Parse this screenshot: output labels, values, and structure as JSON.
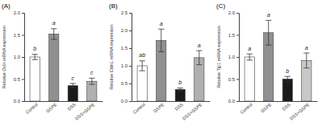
{
  "chart_data": [
    {
      "type": "bar",
      "title": "(A)",
      "ylabel": "Relative Ocln mRNA expression",
      "categories": [
        "Control",
        "GSPE",
        "DSS",
        "DSS+GSPE"
      ],
      "values": [
        1.0,
        1.52,
        0.35,
        0.45
      ],
      "errors": [
        0.06,
        0.12,
        0.05,
        0.07
      ],
      "letters": [
        "b",
        "a",
        "c",
        "c"
      ],
      "colors": [
        "#ffffff",
        "#909090",
        "#1a1a1a",
        "#b0b0b0"
      ],
      "ylim": [
        0,
        2.0
      ],
      "yticks": [
        {
          "value": 0.0,
          "label": "0.0"
        },
        0.5,
        {
          "value": 1.0,
          "label": "1.0"
        },
        1.5,
        {
          "value": 2.0,
          "label": "2.0"
        }
      ]
    },
    {
      "type": "bar",
      "title": "(B)",
      "ylabel": "Relative Cldn1 mRNA expression",
      "categories": [
        "Control",
        "GSPE",
        "DSS",
        "DSS+GSPE"
      ],
      "values": [
        1.0,
        1.72,
        0.33,
        1.23
      ],
      "errors": [
        0.14,
        0.32,
        0.04,
        0.2
      ],
      "letters": [
        "ab",
        "a",
        "b",
        "a"
      ],
      "colors": [
        "#ffffff",
        "#909090",
        "#1a1a1a",
        "#b0b0b0"
      ],
      "ylim": [
        0,
        2.5
      ],
      "yticks": [
        {
          "value": 0.0,
          "label": "0.0"
        },
        0.5,
        {
          "value": 1.0,
          "label": "1.0"
        },
        1.5,
        {
          "value": 2.0,
          "label": "2.0"
        },
        2.5
      ]
    },
    {
      "type": "bar",
      "title": "(C)",
      "ylabel": "Relative Tjp1 mRNA expression",
      "categories": [
        "Control",
        "GSPE",
        "DSS",
        "DSS+GSPE"
      ],
      "values": [
        1.0,
        1.55,
        0.5,
        0.92
      ],
      "errors": [
        0.07,
        0.28,
        0.06,
        0.17
      ],
      "letters": [
        "a",
        "a",
        "b",
        "a"
      ],
      "colors": [
        "#ffffff",
        "#909090",
        "#1a1a1a",
        "#c8c8c8"
      ],
      "ylim": [
        0,
        2.0
      ],
      "yticks": [
        {
          "value": 0.0,
          "label": "0.0"
        },
        0.5,
        {
          "value": 1.0,
          "label": "1.0"
        },
        1.5,
        {
          "value": 2.0,
          "label": "2.0"
        }
      ]
    }
  ]
}
